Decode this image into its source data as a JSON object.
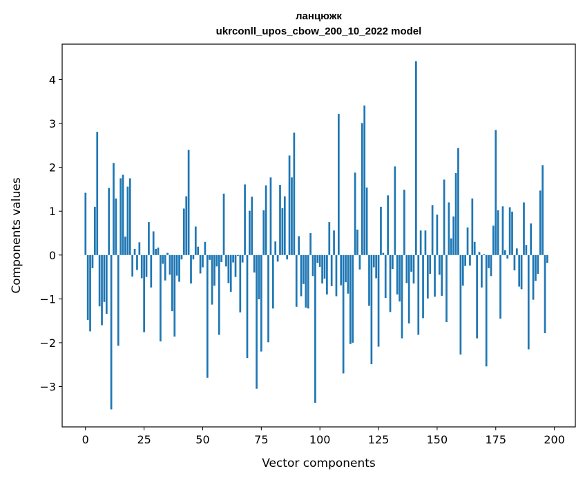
{
  "chart_data": {
    "type": "bar",
    "title_line1": "ланцюжк",
    "title_line2": "ukrconll_upos_cbow_200_10_2022 model",
    "xlabel": "Vector components",
    "ylabel": "Components values",
    "xlim": [
      -9.95,
      208.95
    ],
    "ylim": [
      -3.92,
      4.81
    ],
    "x_ticks": [
      0,
      25,
      50,
      75,
      100,
      125,
      150,
      175,
      200
    ],
    "x_tick_labels": [
      "0",
      "25",
      "50",
      "75",
      "100",
      "125",
      "150",
      "175",
      "200"
    ],
    "y_ticks": [
      -3,
      -2,
      -1,
      0,
      1,
      2,
      3,
      4
    ],
    "y_tick_labels": [
      "−3",
      "−2",
      "−1",
      "0",
      "1",
      "2",
      "3",
      "4"
    ],
    "bar_color": "#1f77b4",
    "values": [
      1.42,
      -1.48,
      -1.74,
      -0.3,
      1.1,
      2.81,
      -1.17,
      -1.6,
      -1.07,
      -1.34,
      1.53,
      -3.52,
      2.1,
      1.29,
      -2.07,
      1.75,
      1.83,
      0.42,
      1.56,
      1.75,
      -0.49,
      0.14,
      -0.34,
      0.29,
      -0.53,
      -1.76,
      -0.5,
      0.75,
      -0.74,
      0.54,
      0.14,
      0.17,
      -1.97,
      -0.2,
      -0.58,
      0.05,
      -0.45,
      -1.28,
      -1.86,
      -0.47,
      -0.61,
      -0.1,
      1.06,
      1.34,
      2.4,
      -0.65,
      -0.1,
      0.65,
      0.19,
      -0.42,
      -0.28,
      0.3,
      -2.8,
      -0.11,
      -1.13,
      -0.7,
      -0.26,
      -1.82,
      -0.16,
      1.4,
      -0.26,
      -0.64,
      -0.84,
      -0.17,
      -0.5,
      -0.02,
      -1.31,
      -0.17,
      1.61,
      -2.35,
      1.01,
      1.33,
      -0.4,
      -3.05,
      -1.01,
      -2.2,
      1.02,
      1.59,
      -1.99,
      1.77,
      -1.22,
      0.31,
      -0.15,
      1.6,
      1.07,
      1.34,
      -0.1,
      2.27,
      1.77,
      2.79,
      -1.18,
      0.43,
      -0.94,
      -0.66,
      -1.2,
      -1.22,
      0.5,
      -0.48,
      -3.37,
      -0.18,
      -0.27,
      -0.65,
      -0.54,
      -0.9,
      0.75,
      -0.71,
      0.56,
      -0.94,
      3.22,
      -0.69,
      -2.7,
      -0.62,
      -0.88,
      -2.03,
      -2.0,
      1.88,
      0.58,
      -0.33,
      3.01,
      3.41,
      1.54,
      -1.16,
      -2.49,
      -0.28,
      -0.53,
      -2.09,
      1.1,
      0.05,
      -0.98,
      1.36,
      -1.3,
      -0.32,
      2.02,
      -0.9,
      -1.06,
      -1.9,
      1.49,
      -0.64,
      -1.56,
      -0.38,
      -0.65,
      4.42,
      -1.82,
      0.56,
      -1.44,
      0.56,
      -0.99,
      -0.43,
      1.14,
      -0.95,
      0.92,
      -0.45,
      -0.93,
      1.72,
      -1.53,
      1.2,
      0.38,
      0.88,
      1.87,
      2.44,
      -2.27,
      -0.7,
      -0.25,
      0.63,
      -0.24,
      1.29,
      0.3,
      -1.9,
      0.07,
      -0.74,
      0.02,
      -2.54,
      -0.3,
      -0.48,
      0.67,
      2.85,
      1.02,
      -1.45,
      1.11,
      0.11,
      -0.08,
      1.09,
      0.99,
      -0.35,
      0.15,
      -0.72,
      -0.78,
      1.2,
      0.23,
      -2.15,
      0.72,
      -1.02,
      -0.59,
      -0.43,
      1.47,
      2.05,
      -1.78,
      -0.18
    ]
  }
}
